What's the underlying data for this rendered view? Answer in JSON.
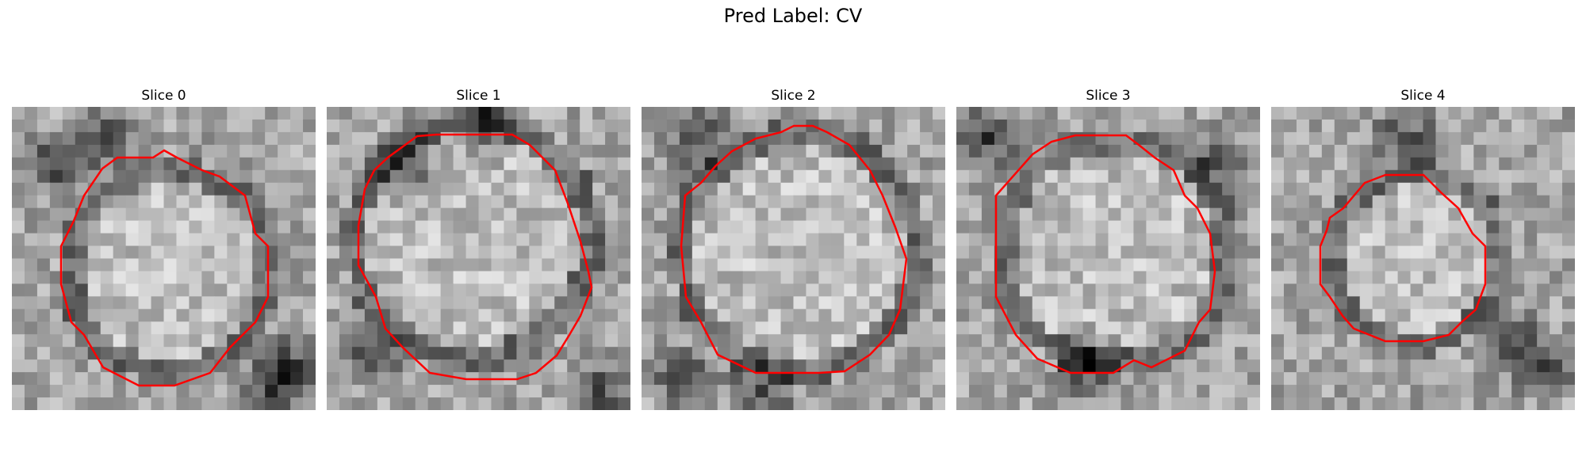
{
  "figure": {
    "title": "Pred Label: CV"
  },
  "panels": [
    {
      "label": "Slice 0"
    },
    {
      "label": "Slice 1"
    },
    {
      "label": "Slice 2"
    },
    {
      "label": "Slice 3"
    },
    {
      "label": "Slice 4"
    }
  ],
  "colors": {
    "contour": "#ff0000",
    "background": "#ffffff"
  }
}
